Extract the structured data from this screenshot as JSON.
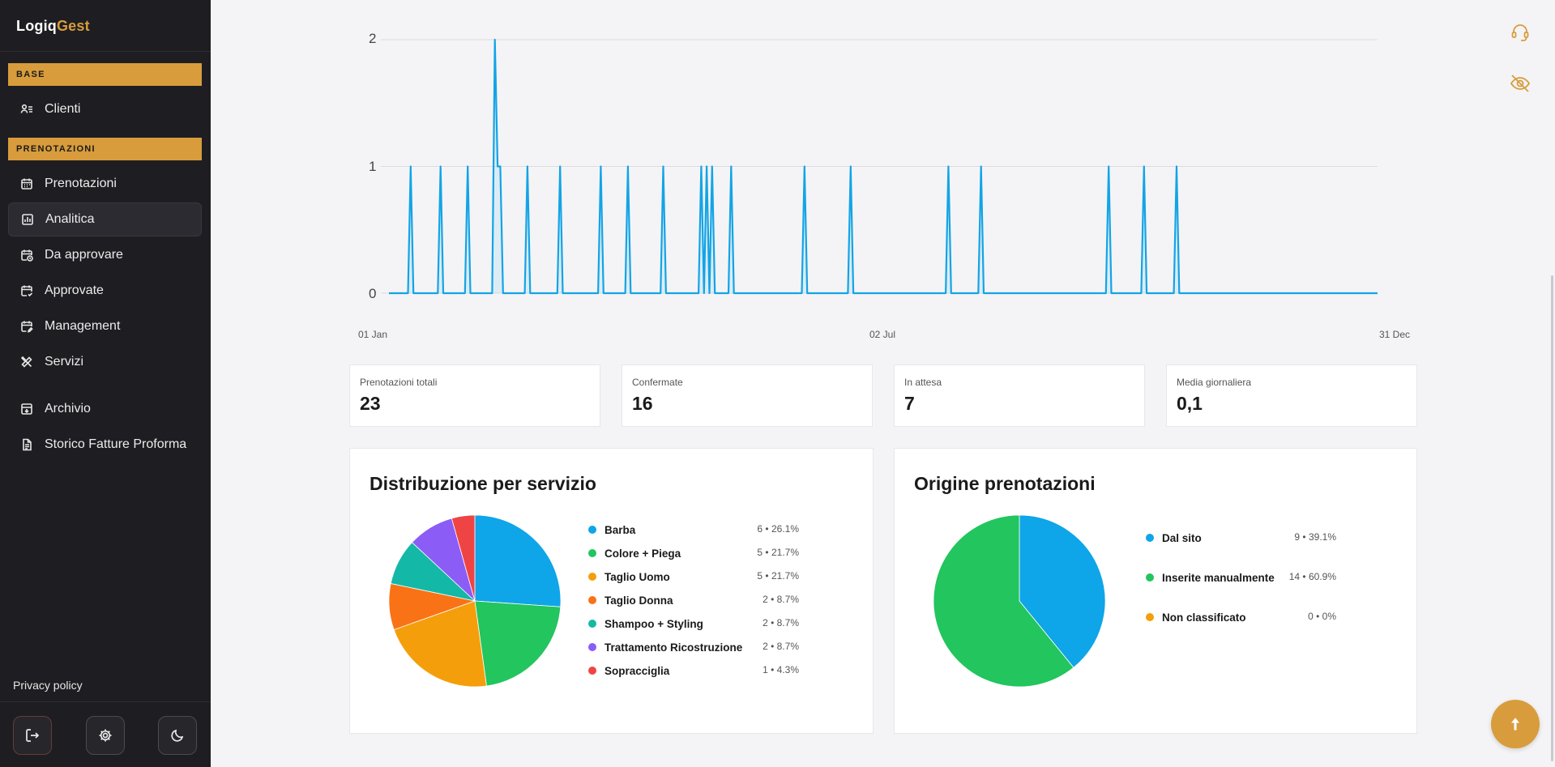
{
  "brand": {
    "part1": "Logiq",
    "part2": "Gest"
  },
  "sidebar": {
    "sections": [
      {
        "label": "BASE"
      },
      {
        "label": "PRENOTAZIONI"
      }
    ],
    "items": [
      {
        "label": "Clienti",
        "icon": "users-list-icon"
      },
      {
        "label": "Prenotazioni",
        "icon": "calendar-icon"
      },
      {
        "label": "Analitica",
        "icon": "chart-icon",
        "active": true
      },
      {
        "label": "Da approvare",
        "icon": "calendar-clock-icon"
      },
      {
        "label": "Approvate",
        "icon": "calendar-check-icon"
      },
      {
        "label": "Management",
        "icon": "calendar-edit-icon"
      },
      {
        "label": "Servizi",
        "icon": "tools-icon"
      },
      {
        "label": "Archivio",
        "icon": "archive-icon"
      },
      {
        "label": "Storico Fatture Proforma",
        "icon": "document-icon"
      }
    ],
    "privacy": "Privacy policy",
    "buttons": [
      "logout-icon",
      "gear-icon",
      "moon-icon"
    ]
  },
  "colors": {
    "accent": "#d89c3c",
    "sidebar_bg": "#1e1e22",
    "line": "#13a4e6",
    "blue": "#0ea5e9",
    "green": "#22c55e",
    "amber": "#f59e0b",
    "orange": "#f97316",
    "teal": "#14b8a6",
    "purple": "#8b5cf6",
    "red": "#ef4444"
  },
  "chart_data": [
    {
      "type": "line",
      "x_ticks": [
        "01 Jan",
        "02 Jul",
        "31 Dec"
      ],
      "y_ticks": [
        "0",
        "1",
        "2"
      ],
      "ylim": [
        0,
        2
      ],
      "grid": true,
      "series": [
        {
          "values": [
            [
              8,
              1
            ],
            [
              19,
              1
            ],
            [
              29,
              1
            ],
            [
              39,
              2
            ],
            [
              40,
              1
            ],
            [
              41,
              1
            ],
            [
              51,
              1
            ],
            [
              63,
              1
            ],
            [
              78,
              1
            ],
            [
              88,
              1
            ],
            [
              101,
              1
            ],
            [
              115,
              1
            ],
            [
              117,
              1
            ],
            [
              119,
              1
            ],
            [
              126,
              1
            ],
            [
              153,
              1
            ],
            [
              170,
              1
            ],
            [
              206,
              1
            ],
            [
              218,
              1
            ],
            [
              265,
              1
            ],
            [
              278,
              1
            ],
            [
              290,
              1
            ]
          ]
        }
      ]
    },
    {
      "type": "pie",
      "title": "Distribuzione per servizio",
      "slices": [
        {
          "label": "Barba",
          "count": 6,
          "pct": "26.1%",
          "color": "#0ea5e9"
        },
        {
          "label": "Colore + Piega",
          "count": 5,
          "pct": "21.7%",
          "color": "#22c55e"
        },
        {
          "label": "Taglio Uomo",
          "count": 5,
          "pct": "21.7%",
          "color": "#f59e0b"
        },
        {
          "label": "Taglio Donna",
          "count": 2,
          "pct": "8.7%",
          "color": "#f97316"
        },
        {
          "label": "Shampoo + Styling",
          "count": 2,
          "pct": "8.7%",
          "color": "#14b8a6"
        },
        {
          "label": "Trattamento Ricostruzione",
          "count": 2,
          "pct": "8.7%",
          "color": "#8b5cf6"
        },
        {
          "label": "Sopracciglia",
          "count": 1,
          "pct": "4.3%",
          "color": "#ef4444"
        }
      ]
    },
    {
      "type": "pie",
      "title": "Origine prenotazioni",
      "slices": [
        {
          "label": "Dal sito",
          "count": 9,
          "pct": "39.1%",
          "color": "#0ea5e9"
        },
        {
          "label": "Inserite manualmente",
          "count": 14,
          "pct": "60.9%",
          "color": "#22c55e"
        },
        {
          "label": "Non classificato",
          "count": 0,
          "pct": "0%",
          "color": "#f59e0b"
        }
      ]
    }
  ],
  "stats": [
    {
      "label": "Prenotazioni totali",
      "value": "23"
    },
    {
      "label": "Confermate",
      "value": "16"
    },
    {
      "label": "In attesa",
      "value": "7"
    },
    {
      "label": "Media giornaliera",
      "value": "0,1"
    }
  ],
  "legend_values": {
    "services": [
      "6 • 26.1%",
      "5 • 21.7%",
      "5 • 21.7%",
      "2 • 8.7%",
      "2 • 8.7%",
      "2 • 8.7%",
      "1 • 4.3%"
    ],
    "origin": [
      "9 • 39.1%",
      "14 • 60.9%",
      "0 • 0%"
    ]
  },
  "top_icons": [
    "headset-icon",
    "eye-off-icon"
  ],
  "fab_icon": "arrow-up-icon"
}
